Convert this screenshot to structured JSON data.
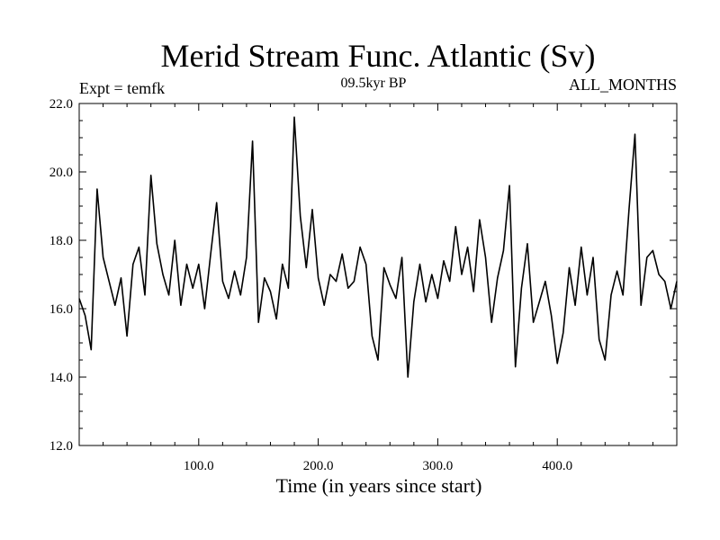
{
  "chart_data": {
    "type": "line",
    "title": "Merid Stream Func. Atlantic (Sv)",
    "subtitle": "09.5kyr BP",
    "annotation_left": "Expt = temfk",
    "annotation_right": "ALL_MONTHS",
    "xlabel": "Time (in years since start)",
    "ylabel": "",
    "xlim": [
      0,
      500
    ],
    "ylim": [
      12,
      22
    ],
    "xticks": [
      100,
      200,
      300,
      400
    ],
    "xtick_labels": [
      "100.0",
      "200.0",
      "300.0",
      "400.0"
    ],
    "yticks": [
      12,
      14,
      16,
      18,
      20,
      22
    ],
    "ytick_labels": [
      "12.0",
      "14.0",
      "16.0",
      "18.0",
      "20.0",
      "22.0"
    ],
    "grid": false,
    "line_color": "#000000",
    "series": [
      {
        "name": "temfk",
        "x": [
          0,
          5,
          10,
          15,
          20,
          25,
          30,
          35,
          40,
          45,
          50,
          55,
          60,
          65,
          70,
          75,
          80,
          85,
          90,
          95,
          100,
          105,
          110,
          115,
          120,
          125,
          130,
          135,
          140,
          145,
          150,
          155,
          160,
          165,
          170,
          175,
          180,
          185,
          190,
          195,
          200,
          205,
          210,
          215,
          220,
          225,
          230,
          235,
          240,
          245,
          250,
          255,
          260,
          265,
          270,
          275,
          280,
          285,
          290,
          295,
          300,
          305,
          310,
          315,
          320,
          325,
          330,
          335,
          340,
          345,
          350,
          355,
          360,
          365,
          370,
          375,
          380,
          385,
          390,
          395,
          400,
          405,
          410,
          415,
          420,
          425,
          430,
          435,
          440,
          445,
          450,
          455,
          460,
          465,
          470,
          475,
          480,
          485,
          490,
          495,
          500
        ],
        "values": [
          16.3,
          15.8,
          14.8,
          19.5,
          17.5,
          16.8,
          16.1,
          16.9,
          15.2,
          17.3,
          17.8,
          16.4,
          19.9,
          17.9,
          17.0,
          16.4,
          18.0,
          16.1,
          17.3,
          16.6,
          17.3,
          16.0,
          17.6,
          19.1,
          16.8,
          16.3,
          17.1,
          16.4,
          17.5,
          20.9,
          15.6,
          16.9,
          16.5,
          15.7,
          17.3,
          16.6,
          21.6,
          18.7,
          17.2,
          18.9,
          16.9,
          16.1,
          17.0,
          16.8,
          17.6,
          16.6,
          16.8,
          17.8,
          17.3,
          15.2,
          14.5,
          17.2,
          16.7,
          16.3,
          17.5,
          14.0,
          16.2,
          17.3,
          16.2,
          17.0,
          16.3,
          17.4,
          16.8,
          18.4,
          17.0,
          17.8,
          16.5,
          18.6,
          17.5,
          15.6,
          16.9,
          17.7,
          19.6,
          14.3,
          16.6,
          17.9,
          15.6,
          16.2,
          16.8,
          15.8,
          14.4,
          15.3,
          17.2,
          16.1,
          17.8,
          16.4,
          17.5,
          15.1,
          14.5,
          16.4,
          17.1,
          16.4,
          18.9,
          21.1,
          16.1,
          17.5,
          17.7,
          17.0,
          16.8,
          16.0,
          16.8
        ]
      }
    ]
  }
}
